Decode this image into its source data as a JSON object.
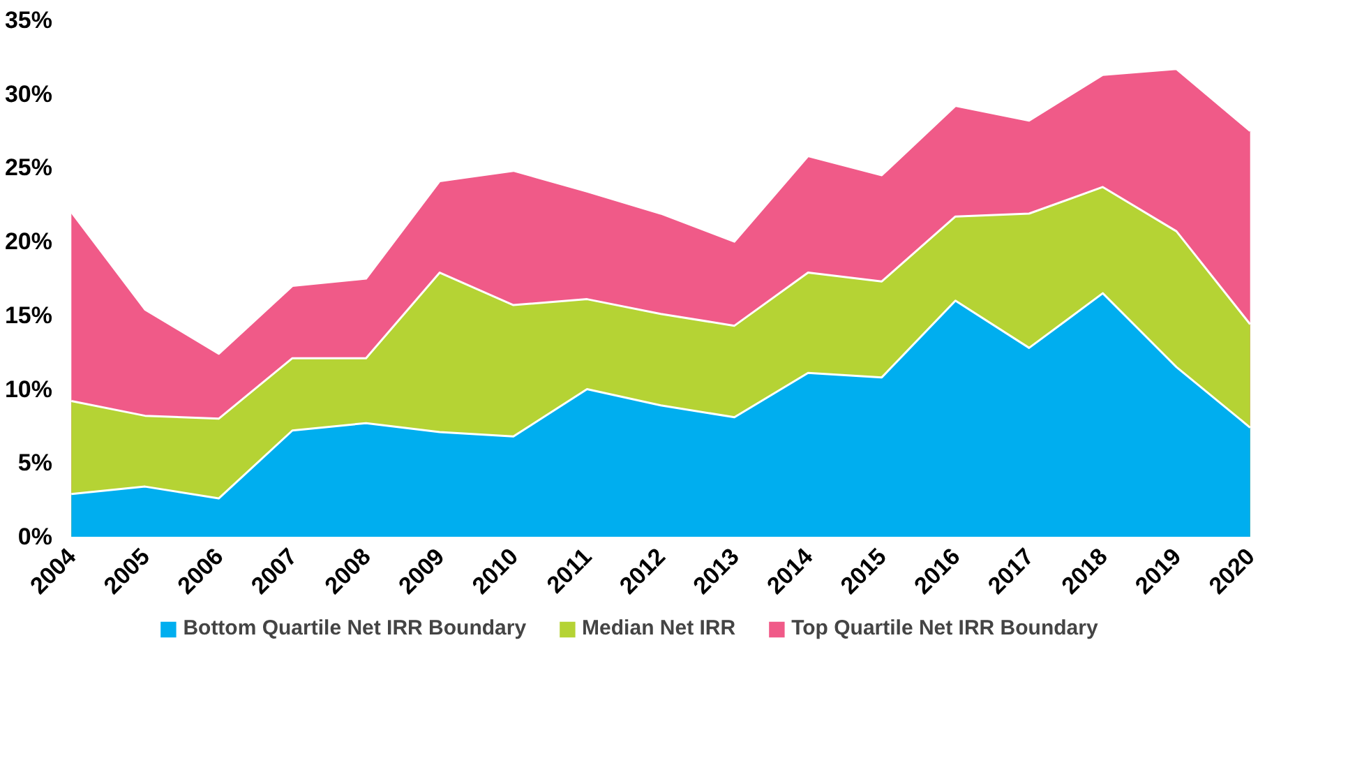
{
  "chart_data": {
    "type": "area",
    "categories": [
      "2004",
      "2005",
      "2006",
      "2007",
      "2008",
      "2009",
      "2010",
      "2011",
      "2012",
      "2013",
      "2014",
      "2015",
      "2016",
      "2017",
      "2018",
      "2019",
      "2020"
    ],
    "series": [
      {
        "name": "Bottom Quartile Net IRR Boundary",
        "color": "#00aeef",
        "values": [
          2.9,
          3.4,
          2.6,
          7.2,
          7.7,
          7.1,
          6.8,
          10.0,
          8.9,
          8.1,
          11.1,
          10.8,
          16.0,
          12.8,
          16.5,
          11.5,
          7.4
        ]
      },
      {
        "name": "Median Net IRR",
        "color": "#b5d334",
        "values": [
          9.2,
          8.2,
          8.0,
          12.1,
          12.1,
          17.9,
          15.7,
          16.1,
          15.1,
          14.3,
          17.9,
          17.3,
          21.7,
          21.9,
          23.7,
          20.7,
          14.4
        ]
      },
      {
        "name": "Top Quartile Net IRR Boundary",
        "color": "#f05a88",
        "values": [
          22.0,
          15.4,
          12.4,
          17.0,
          17.5,
          24.1,
          24.8,
          23.4,
          21.9,
          20.0,
          25.8,
          24.5,
          29.2,
          28.2,
          31.3,
          31.7,
          27.5
        ]
      }
    ],
    "ylim": [
      0,
      35
    ],
    "yticks": [
      {
        "value": 0,
        "label": "0%"
      },
      {
        "value": 5,
        "label": "5%"
      },
      {
        "value": 10,
        "label": "10%"
      },
      {
        "value": 15,
        "label": "15%"
      },
      {
        "value": 20,
        "label": "20%"
      },
      {
        "value": 25,
        "label": "25%"
      },
      {
        "value": 30,
        "label": "30%"
      },
      {
        "value": 35,
        "label": "35%"
      }
    ],
    "grid": false,
    "legend": "bottom"
  }
}
